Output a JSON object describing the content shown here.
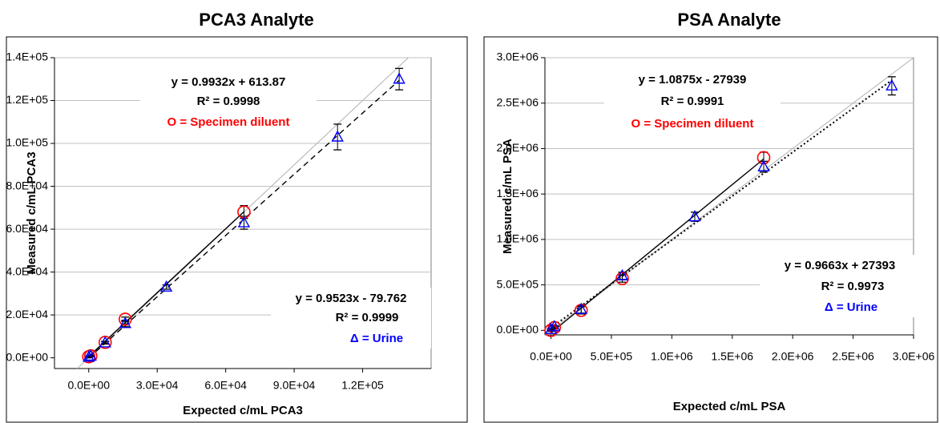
{
  "chart_data": [
    {
      "type": "scatter",
      "title": "PCA3 Analyte",
      "xlabel": "Expected c/mL PCA3",
      "ylabel": "Measured c/mL PCA3",
      "xlim": [
        -15000,
        150000
      ],
      "ylim": [
        -5000,
        140000
      ],
      "xticks": [
        {
          "value": 0,
          "label": "0.0E+00"
        },
        {
          "value": 30000,
          "label": "3.0E+04"
        },
        {
          "value": 60000,
          "label": "6.0E+04"
        },
        {
          "value": 90000,
          "label": "9.0E+04"
        },
        {
          "value": 120000,
          "label": "1.2E+05"
        }
      ],
      "yticks": [
        {
          "value": 0,
          "label": "0.0E+00"
        },
        {
          "value": 20000,
          "label": "2.0E+04"
        },
        {
          "value": 40000,
          "label": "4.0E+04"
        },
        {
          "value": 60000,
          "label": "6.0E+04"
        },
        {
          "value": 80000,
          "label": "8.0E+04"
        },
        {
          "value": 100000,
          "label": "1.0E+05"
        },
        {
          "value": 120000,
          "label": "1.2E+05"
        },
        {
          "value": 140000,
          "label": "1.4E+05"
        }
      ],
      "grid": "horizontal",
      "series": [
        {
          "name": "O = Specimen diluent",
          "marker": "circle",
          "color": "#ff0000",
          "x": [
            0,
            900,
            7200,
            16000,
            68000
          ],
          "y": [
            500,
            900,
            7200,
            18000,
            68000
          ],
          "err": [
            300,
            300,
            500,
            1000,
            3000
          ],
          "fit": {
            "slope": 0.9932,
            "intercept": 613.87,
            "x_range": [
              0,
              68000
            ],
            "style": "solid"
          }
        },
        {
          "name": "Δ = Urine",
          "marker": "triangle",
          "color": "#0000ff",
          "x": [
            0,
            900,
            7200,
            16000,
            34000,
            68000,
            109000,
            136000
          ],
          "y": [
            300,
            800,
            7000,
            16000,
            33000,
            63000,
            103000,
            130000
          ],
          "err": [
            300,
            300,
            600,
            1500,
            1000,
            3000,
            6000,
            5000
          ],
          "fit": {
            "slope": 0.9523,
            "intercept": -79.762,
            "x_range": [
              0,
              136000
            ],
            "style": "dashed"
          }
        }
      ],
      "annotations": {
        "diluent_eq": "y = 0.9932x + 613.87",
        "diluent_r2": "R² = 0.9998",
        "diluent_legend": "O = Specimen diluent",
        "urine_eq": "y = 0.9523x - 79.762",
        "urine_r2": "R² = 0.9999",
        "urine_legend": "Δ = Urine"
      }
    },
    {
      "type": "scatter",
      "title": "PSA Analyte",
      "xlabel": "Expected c/mL PSA",
      "ylabel": "Measured c/mL PSA",
      "xlim": [
        -50000,
        3000000
      ],
      "ylim": [
        -50000,
        3000000
      ],
      "xticks": [
        {
          "value": 0,
          "label": "0.0E+00"
        },
        {
          "value": 500000,
          "label": "5.0E+05"
        },
        {
          "value": 1000000,
          "label": "1.0E+06"
        },
        {
          "value": 1500000,
          "label": "1.5E+06"
        },
        {
          "value": 2000000,
          "label": "2.0E+06"
        },
        {
          "value": 2500000,
          "label": "2.5E+06"
        },
        {
          "value": 3000000,
          "label": "3.0E+06"
        }
      ],
      "yticks": [
        {
          "value": 0,
          "label": "0.0E+00"
        },
        {
          "value": 500000,
          "label": "5.0E+05"
        },
        {
          "value": 1000000,
          "label": "1.0E+06"
        },
        {
          "value": 1500000,
          "label": "1.5E+06"
        },
        {
          "value": 2000000,
          "label": "2.0E+06"
        },
        {
          "value": 2500000,
          "label": "2.5E+06"
        },
        {
          "value": 3000000,
          "label": "3.0E+06"
        }
      ],
      "grid": "horizontal",
      "series": [
        {
          "name": "O = Specimen diluent",
          "marker": "circle",
          "color": "#ff0000",
          "x": [
            0,
            28000,
            250000,
            590000,
            1760000
          ],
          "y": [
            0,
            30000,
            220000,
            570000,
            1900000
          ],
          "err": [
            10000,
            10000,
            40000,
            40000,
            60000
          ],
          "fit": {
            "slope": 1.0875,
            "intercept": -27939,
            "x_range": [
              0,
              1760000
            ],
            "style": "solid"
          }
        },
        {
          "name": "Δ = Urine",
          "marker": "triangle",
          "color": "#0000ff",
          "x": [
            0,
            28000,
            250000,
            590000,
            1190000,
            1760000,
            2820000
          ],
          "y": [
            10000,
            40000,
            230000,
            600000,
            1250000,
            1800000,
            2690000
          ],
          "err": [
            10000,
            10000,
            40000,
            40000,
            50000,
            60000,
            100000
          ],
          "fit": {
            "slope": 0.9663,
            "intercept": 27393,
            "x_range": [
              0,
              2820000
            ],
            "style": "dotted"
          }
        }
      ],
      "annotations": {
        "diluent_eq": "y = 1.0875x - 27939",
        "diluent_r2": "R² = 0.9991",
        "diluent_legend": "O = Specimen diluent",
        "urine_eq": "y = 0.9663x + 27393",
        "urine_r2": "R² = 0.9973",
        "urine_legend": "Δ = Urine"
      }
    }
  ]
}
